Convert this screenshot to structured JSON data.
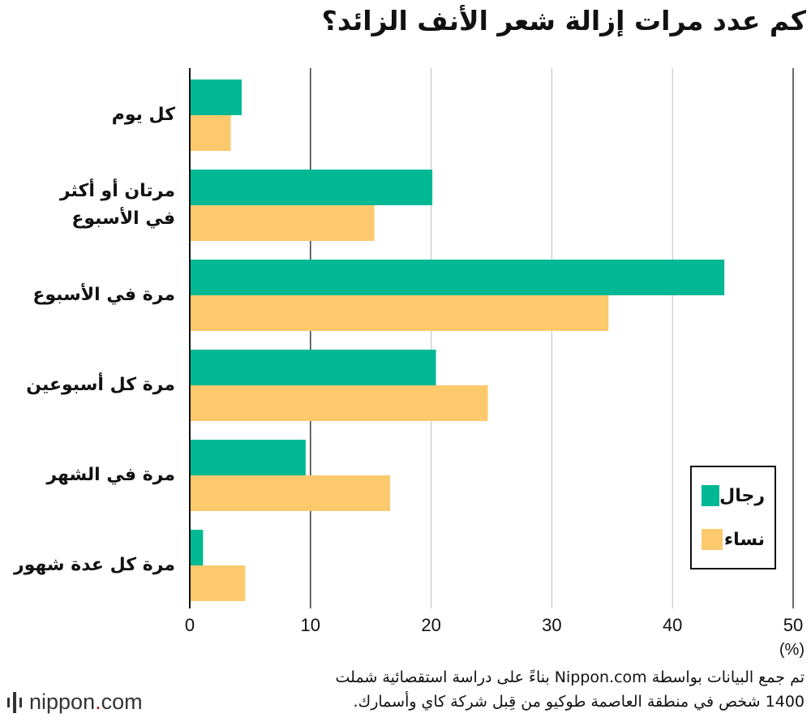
{
  "chart_data": {
    "type": "bar",
    "orientation": "horizontal",
    "title": "كم عدد مرات إزالة شعر الأنف الزائد؟",
    "categories": [
      "كل يوم",
      "مرتان أو أكثر في الأسبوع",
      "مرة في الأسبوع",
      "مرة كل أسبوعين",
      "مرة في الشهر",
      "مرة كل عدة شهور"
    ],
    "category_lines": [
      [
        "كل يوم"
      ],
      [
        "مرتان أو أكثر",
        "في الأسبوع"
      ],
      [
        "مرة في الأسبوع"
      ],
      [
        "مرة كل أسبوعين"
      ],
      [
        "مرة في الشهر"
      ],
      [
        "مرة كل عدة شهور"
      ]
    ],
    "series": [
      {
        "name": "رجال",
        "color": "#00b894",
        "values": [
          4.3,
          20.1,
          44.3,
          20.4,
          9.6,
          1.1
        ]
      },
      {
        "name": "نساء",
        "color": "#fcc96d",
        "values": [
          3.4,
          15.3,
          34.7,
          24.7,
          16.6,
          4.6
        ]
      }
    ],
    "xlim": [
      0,
      50
    ],
    "xticks": [
      0,
      10,
      20,
      30,
      40,
      50
    ],
    "xunit": "(%)",
    "grid": true,
    "legend_position": "bottom-right"
  },
  "footer": {
    "note_line1": "تم جمع البيانات بواسطة Nippon.com بناءً على دراسة استقصائية شملت",
    "note_line2": "1400 شخص في منطقة العاصمة طوكيو من قِبل شركة كاي وأسمارك.",
    "brand_name": "nippon",
    "brand_dot": ".",
    "brand_tld": "com"
  }
}
